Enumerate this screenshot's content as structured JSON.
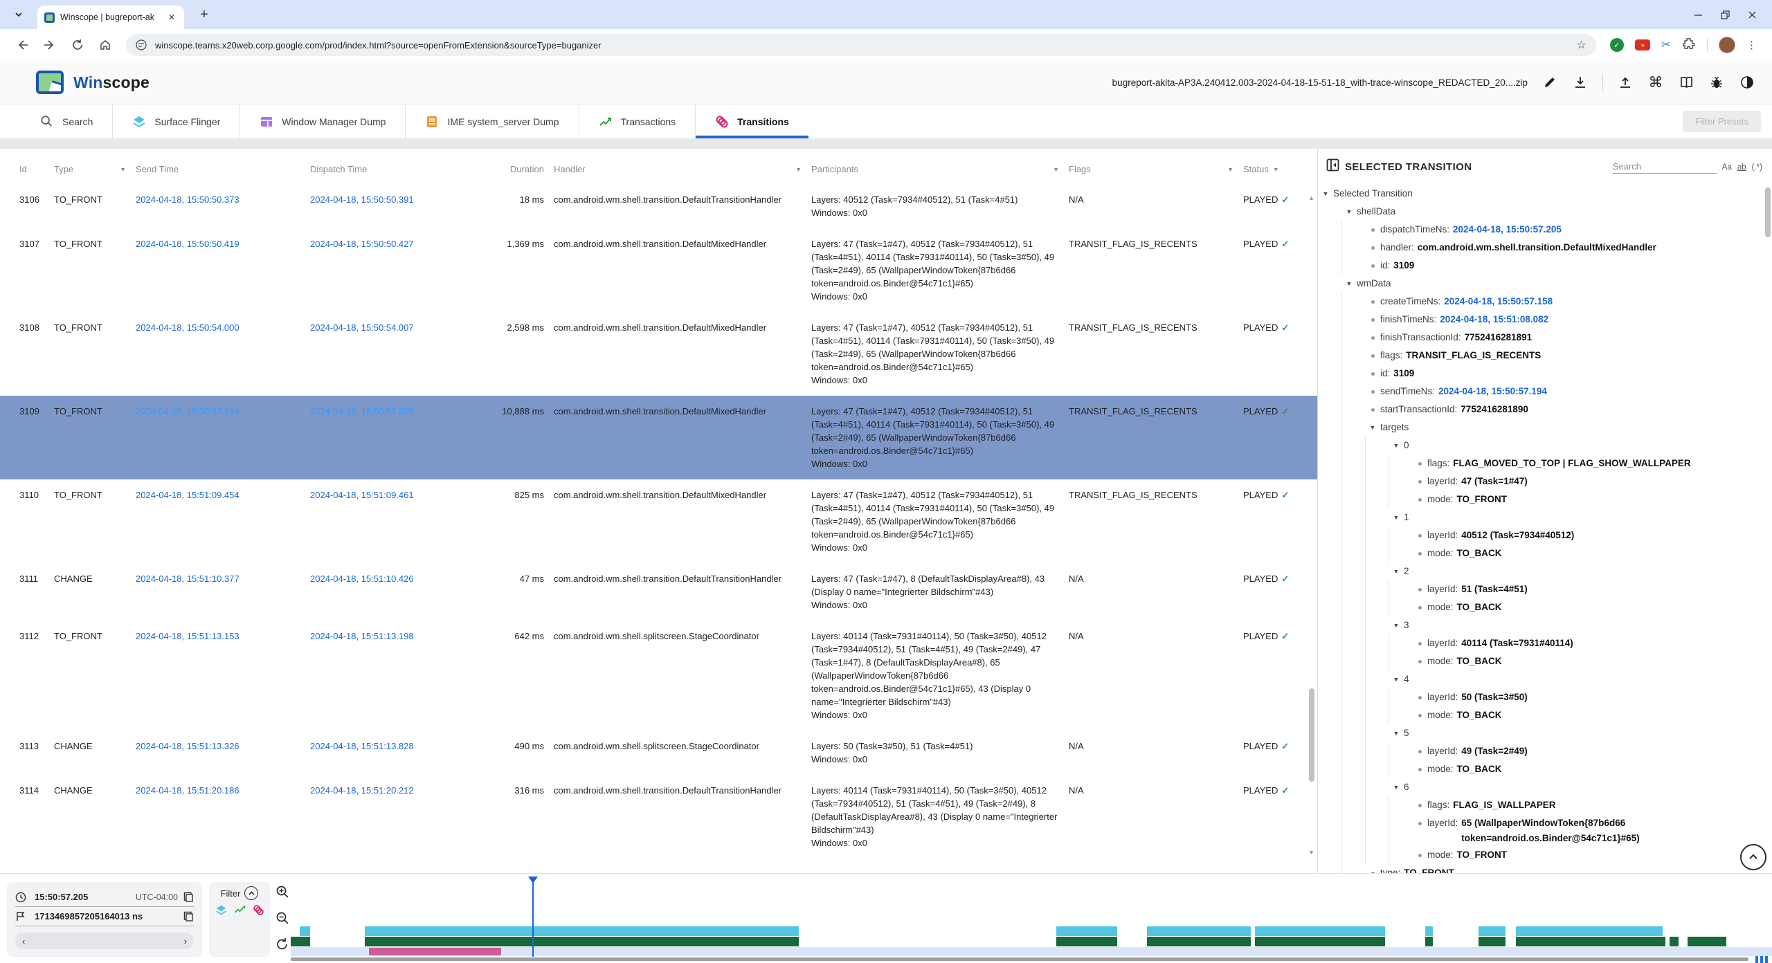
{
  "colors": {
    "accent_blue": "#1967d2",
    "selected_row": "#7d97c9",
    "selected_row_link": "#2f9bfe",
    "link_blue": "#1967d2",
    "check_green": "#1e9e3e",
    "track_cyan": "#53c6e4",
    "track_green": "#15693b",
    "track_pink": "#ce5d9a",
    "transitions_band": "#dbe5fa",
    "cursor_blue": "#1a66d0"
  },
  "browser": {
    "tab_title": "Winscope | bugreport-ak",
    "url": "winscope.teams.x20web.corp.google.com/prod/index.html?source=openFromExtension&sourceType=buganizer"
  },
  "header": {
    "title_blue": "Win",
    "title_rest": "scope",
    "file_name": "bugreport-akita-AP3A.240412.003-2024-04-18-15-51-18_with-trace-winscope_REDACTED_20....zip"
  },
  "viewer_tabs": {
    "items": [
      {
        "label": "Search",
        "icon": "search",
        "active": false
      },
      {
        "label": "Surface Flinger",
        "icon": "layers",
        "active": false
      },
      {
        "label": "Window Manager Dump",
        "icon": "window",
        "active": false
      },
      {
        "label": "IME system_server Dump",
        "icon": "ime",
        "active": false
      },
      {
        "label": "Transactions",
        "icon": "transactions",
        "active": false
      },
      {
        "label": "Transitions",
        "icon": "transitions",
        "active": true
      }
    ],
    "filter_presets_label": "Filter Presets"
  },
  "table": {
    "columns": [
      {
        "label": "Id",
        "filter": false,
        "align": "left"
      },
      {
        "label": "Type",
        "filter": true,
        "align": "left"
      },
      {
        "label": "Send Time",
        "filter": false,
        "align": "left"
      },
      {
        "label": "Dispatch Time",
        "filter": false,
        "align": "left"
      },
      {
        "label": "Duration",
        "filter": false,
        "align": "right"
      },
      {
        "label": "Handler",
        "filter": true,
        "align": "left"
      },
      {
        "label": "Participants",
        "filter": true,
        "align": "left"
      },
      {
        "label": "Flags",
        "filter": true,
        "align": "left"
      },
      {
        "label": "Status",
        "filter": true,
        "align": "left",
        "tight": true
      }
    ],
    "rows": [
      {
        "id": "3106",
        "type": "TO_FRONT",
        "send": "2024-04-18, 15:50:50.373",
        "dispatch": "2024-04-18, 15:50:50.391",
        "duration": "18 ms",
        "handler": "com.android.wm.shell.transition.DefaultTransitionHandler",
        "layers": "Layers: 40512 (Task=7934#40512), 51 (Task=4#51)",
        "windows": "Windows: 0x0",
        "flags": "N/A",
        "status": "PLAYED",
        "selected": false
      },
      {
        "id": "3107",
        "type": "TO_FRONT",
        "send": "2024-04-18, 15:50:50.419",
        "dispatch": "2024-04-18, 15:50:50.427",
        "duration": "1,369 ms",
        "handler": "com.android.wm.shell.transition.DefaultMixedHandler",
        "layers": "Layers: 47 (Task=1#47), 40512 (Task=7934#40512), 51 (Task=4#51), 40114 (Task=7931#40114), 50 (Task=3#50), 49 (Task=2#49), 65 (WallpaperWindowToken{87b6d66 token=android.os.Binder@54c71c1}#65)",
        "windows": "Windows: 0x0",
        "flags": "TRANSIT_FLAG_IS_RECENTS",
        "status": "PLAYED",
        "selected": false
      },
      {
        "id": "3108",
        "type": "TO_FRONT",
        "send": "2024-04-18, 15:50:54.000",
        "dispatch": "2024-04-18, 15:50:54.007",
        "duration": "2,598 ms",
        "handler": "com.android.wm.shell.transition.DefaultMixedHandler",
        "layers": "Layers: 47 (Task=1#47), 40512 (Task=7934#40512), 51 (Task=4#51), 40114 (Task=7931#40114), 50 (Task=3#50), 49 (Task=2#49), 65 (WallpaperWindowToken{87b6d66 token=android.os.Binder@54c71c1}#65)",
        "windows": "Windows: 0x0",
        "flags": "TRANSIT_FLAG_IS_RECENTS",
        "status": "PLAYED",
        "selected": false
      },
      {
        "id": "3109",
        "type": "TO_FRONT",
        "send": "2024-04-18, 15:50:57.194",
        "dispatch": "2024-04-18, 15:50:57.205",
        "duration": "10,888 ms",
        "handler": "com.android.wm.shell.transition.DefaultMixedHandler",
        "layers": "Layers: 47 (Task=1#47), 40512 (Task=7934#40512), 51 (Task=4#51), 40114 (Task=7931#40114), 50 (Task=3#50), 49 (Task=2#49), 65 (WallpaperWindowToken{87b6d66 token=android.os.Binder@54c71c1}#65)",
        "windows": "Windows: 0x0",
        "flags": "TRANSIT_FLAG_IS_RECENTS",
        "status": "PLAYED",
        "selected": true
      },
      {
        "id": "3110",
        "type": "TO_FRONT",
        "send": "2024-04-18, 15:51:09.454",
        "dispatch": "2024-04-18, 15:51:09.461",
        "duration": "825 ms",
        "handler": "com.android.wm.shell.transition.DefaultMixedHandler",
        "layers": "Layers: 47 (Task=1#47), 40512 (Task=7934#40512), 51 (Task=4#51), 40114 (Task=7931#40114), 50 (Task=3#50), 49 (Task=2#49), 65 (WallpaperWindowToken{87b6d66 token=android.os.Binder@54c71c1}#65)",
        "windows": "Windows: 0x0",
        "flags": "TRANSIT_FLAG_IS_RECENTS",
        "status": "PLAYED",
        "selected": false
      },
      {
        "id": "3111",
        "type": "CHANGE",
        "send": "2024-04-18, 15:51:10.377",
        "dispatch": "2024-04-18, 15:51:10.426",
        "duration": "47 ms",
        "handler": "com.android.wm.shell.transition.DefaultTransitionHandler",
        "layers": "Layers: 47 (Task=1#47), 8 (DefaultTaskDisplayArea#8), 43 (Display 0 name=\"Integrierter Bildschirm\"#43)",
        "windows": "Windows: 0x0",
        "flags": "N/A",
        "status": "PLAYED",
        "selected": false
      },
      {
        "id": "3112",
        "type": "TO_FRONT",
        "send": "2024-04-18, 15:51:13.153",
        "dispatch": "2024-04-18, 15:51:13.198",
        "duration": "642 ms",
        "handler": "com.android.wm.shell.splitscreen.StageCoordinator",
        "layers": "Layers: 40114 (Task=7931#40114), 50 (Task=3#50), 40512 (Task=7934#40512), 51 (Task=4#51), 49 (Task=2#49), 47 (Task=1#47), 8 (DefaultTaskDisplayArea#8), 65 (WallpaperWindowToken{87b6d66 token=android.os.Binder@54c71c1}#65), 43 (Display 0 name=\"Integrierter Bildschirm\"#43)",
        "windows": "Windows: 0x0",
        "flags": "N/A",
        "status": "PLAYED",
        "selected": false
      },
      {
        "id": "3113",
        "type": "CHANGE",
        "send": "2024-04-18, 15:51:13.326",
        "dispatch": "2024-04-18, 15:51:13.828",
        "duration": "490 ms",
        "handler": "com.android.wm.shell.splitscreen.StageCoordinator",
        "layers": "Layers: 50 (Task=3#50), 51 (Task=4#51)",
        "windows": "Windows: 0x0",
        "flags": "N/A",
        "status": "PLAYED",
        "selected": false
      },
      {
        "id": "3114",
        "type": "CHANGE",
        "send": "2024-04-18, 15:51:20.186",
        "dispatch": "2024-04-18, 15:51:20.212",
        "duration": "316 ms",
        "handler": "com.android.wm.shell.transition.DefaultTransitionHandler",
        "layers": "Layers: 40114 (Task=7931#40114), 50 (Task=3#50), 40512 (Task=7934#40512), 51 (Task=4#51), 49 (Task=2#49), 8 (DefaultTaskDisplayArea#8), 43 (Display 0 name=\"Integrierter Bildschirm\"#43)",
        "windows": "Windows: 0x0",
        "flags": "N/A",
        "status": "PLAYED",
        "selected": false
      }
    ]
  },
  "right_panel": {
    "title": "SELECTED TRANSITION",
    "search_placeholder": "Search",
    "match_case": "Aa",
    "match_word": "ab",
    "regex": "(.*)",
    "tree": [
      {
        "i": 0,
        "k": "caret",
        "label": "Selected Transition"
      },
      {
        "i": 1,
        "k": "caret",
        "label": "shellData"
      },
      {
        "i": 2,
        "k": "leaf",
        "label": "dispatchTimeNs:",
        "value": "2024-04-18, 15:50:57.205",
        "vt": "time"
      },
      {
        "i": 2,
        "k": "leaf",
        "label": "handler:",
        "value": "com.android.wm.shell.transition.DefaultMixedHandler",
        "vt": "bold"
      },
      {
        "i": 2,
        "k": "leaf",
        "label": "id:",
        "value": "3109",
        "vt": "bold"
      },
      {
        "i": 1,
        "k": "caret",
        "label": "wmData"
      },
      {
        "i": 2,
        "k": "leaf",
        "label": "createTimeNs:",
        "value": "2024-04-18, 15:50:57.158",
        "vt": "time"
      },
      {
        "i": 2,
        "k": "leaf",
        "label": "finishTimeNs:",
        "value": "2024-04-18, 15:51:08.082",
        "vt": "time"
      },
      {
        "i": 2,
        "k": "leaf",
        "label": "finishTransactionId:",
        "value": "7752416281891",
        "vt": "bold"
      },
      {
        "i": 2,
        "k": "leaf",
        "label": "flags:",
        "value": "TRANSIT_FLAG_IS_RECENTS",
        "vt": "bold"
      },
      {
        "i": 2,
        "k": "leaf",
        "label": "id:",
        "value": "3109",
        "vt": "bold"
      },
      {
        "i": 2,
        "k": "leaf",
        "label": "sendTimeNs:",
        "value": "2024-04-18, 15:50:57.194",
        "vt": "time"
      },
      {
        "i": 2,
        "k": "leaf",
        "label": "startTransactionId:",
        "value": "7752416281890",
        "vt": "bold"
      },
      {
        "i": 2,
        "k": "caret",
        "label": "targets"
      },
      {
        "i": 3,
        "k": "caret",
        "label": "0"
      },
      {
        "i": 4,
        "k": "leaf",
        "label": "flags:",
        "value": "FLAG_MOVED_TO_TOP | FLAG_SHOW_WALLPAPER",
        "vt": "bold"
      },
      {
        "i": 4,
        "k": "leaf",
        "label": "layerId:",
        "value": "47 (Task=1#47)",
        "vt": "bold"
      },
      {
        "i": 4,
        "k": "leaf",
        "label": "mode:",
        "value": "TO_FRONT",
        "vt": "bold"
      },
      {
        "i": 3,
        "k": "caret",
        "label": "1"
      },
      {
        "i": 4,
        "k": "leaf",
        "label": "layerId:",
        "value": "40512 (Task=7934#40512)",
        "vt": "bold"
      },
      {
        "i": 4,
        "k": "leaf",
        "label": "mode:",
        "value": "TO_BACK",
        "vt": "bold"
      },
      {
        "i": 3,
        "k": "caret",
        "label": "2"
      },
      {
        "i": 4,
        "k": "leaf",
        "label": "layerId:",
        "value": "51 (Task=4#51)",
        "vt": "bold"
      },
      {
        "i": 4,
        "k": "leaf",
        "label": "mode:",
        "value": "TO_BACK",
        "vt": "bold"
      },
      {
        "i": 3,
        "k": "caret",
        "label": "3"
      },
      {
        "i": 4,
        "k": "leaf",
        "label": "layerId:",
        "value": "40114 (Task=7931#40114)",
        "vt": "bold"
      },
      {
        "i": 4,
        "k": "leaf",
        "label": "mode:",
        "value": "TO_BACK",
        "vt": "bold"
      },
      {
        "i": 3,
        "k": "caret",
        "label": "4"
      },
      {
        "i": 4,
        "k": "leaf",
        "label": "layerId:",
        "value": "50 (Task=3#50)",
        "vt": "bold"
      },
      {
        "i": 4,
        "k": "leaf",
        "label": "mode:",
        "value": "TO_BACK",
        "vt": "bold"
      },
      {
        "i": 3,
        "k": "caret",
        "label": "5"
      },
      {
        "i": 4,
        "k": "leaf",
        "label": "layerId:",
        "value": "49 (Task=2#49)",
        "vt": "bold"
      },
      {
        "i": 4,
        "k": "leaf",
        "label": "mode:",
        "value": "TO_BACK",
        "vt": "bold"
      },
      {
        "i": 3,
        "k": "caret",
        "label": "6"
      },
      {
        "i": 4,
        "k": "leaf",
        "label": "flags:",
        "value": "FLAG_IS_WALLPAPER",
        "vt": "bold"
      },
      {
        "i": 4,
        "k": "leaf",
        "label": "layerId:",
        "value": "65 (WallpaperWindowToken{87b6d66 token=android.os.Binder@54c71c1}#65)",
        "vt": "bold"
      },
      {
        "i": 4,
        "k": "leaf",
        "label": "mode:",
        "value": "TO_FRONT",
        "vt": "bold"
      },
      {
        "i": 2,
        "k": "leaf",
        "label": "type:",
        "value": "TO_FRONT",
        "vt": "bold"
      }
    ]
  },
  "timeline": {
    "time_display": "15:50:57.205",
    "utc_offset": "UTC-04:00",
    "ns_display": "1713469857205164013 ns",
    "filter_label": "Filter",
    "cursor_percent": 16.3,
    "tracks": {
      "surface_flinger": [
        [
          0.6,
          0.7
        ],
        [
          5.0,
          29.3
        ],
        [
          51.7,
          4.1
        ],
        [
          57.8,
          7.0
        ],
        [
          65.1,
          8.8
        ],
        [
          76.6,
          0.5
        ],
        [
          80.2,
          1.8
        ],
        [
          82.7,
          9.9
        ]
      ],
      "transactions": [
        [
          0,
          1.3
        ],
        [
          5.0,
          29.3
        ],
        [
          51.7,
          4.1
        ],
        [
          57.8,
          7.0
        ],
        [
          65.1,
          8.8
        ],
        [
          76.6,
          0.5
        ],
        [
          80.2,
          1.8
        ],
        [
          82.7,
          10.1
        ],
        [
          93.1,
          0.6
        ],
        [
          94.3,
          2.6
        ]
      ],
      "transitions": [
        [
          5.3,
          8.9
        ]
      ]
    }
  }
}
